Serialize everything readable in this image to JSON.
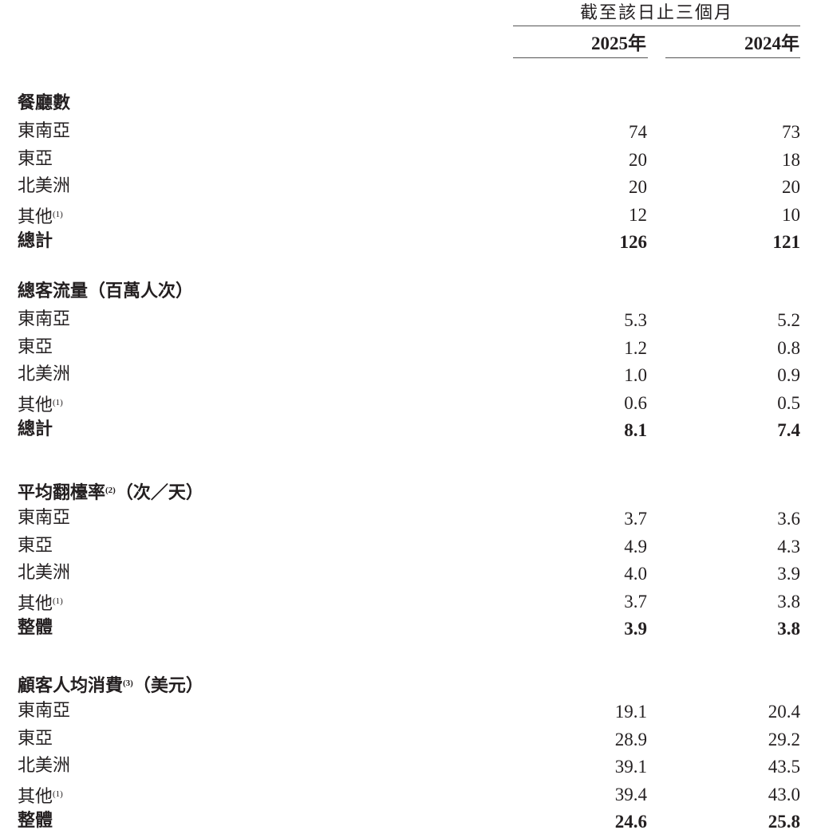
{
  "header": {
    "period": "截至該日止三個月",
    "years": [
      "2025年",
      "2024年"
    ]
  },
  "sections": [
    {
      "title": "餐廳數",
      "title_note": "",
      "title_suffix": "",
      "rows": [
        {
          "label": "東南亞",
          "note": "",
          "values": [
            "74",
            "73"
          ]
        },
        {
          "label": "東亞",
          "note": "",
          "values": [
            "20",
            "18"
          ]
        },
        {
          "label": "北美洲",
          "note": "",
          "values": [
            "20",
            "20"
          ]
        },
        {
          "label": "其他",
          "note": "(1)",
          "values": [
            "12",
            "10"
          ]
        },
        {
          "label": "總計",
          "note": "",
          "values": [
            "126",
            "121"
          ],
          "bold": true
        }
      ]
    },
    {
      "title": "總客流量",
      "title_note": "",
      "title_suffix": "（百萬人次）",
      "rows": [
        {
          "label": "東南亞",
          "note": "",
          "values": [
            "5.3",
            "5.2"
          ]
        },
        {
          "label": "東亞",
          "note": "",
          "values": [
            "1.2",
            "0.8"
          ]
        },
        {
          "label": "北美洲",
          "note": "",
          "values": [
            "1.0",
            "0.9"
          ]
        },
        {
          "label": "其他",
          "note": "(1)",
          "values": [
            "0.6",
            "0.5"
          ]
        },
        {
          "label": "總計",
          "note": "",
          "values": [
            "8.1",
            "7.4"
          ],
          "bold": true
        }
      ]
    },
    {
      "title": "平均翻檯率",
      "title_note": "(2)",
      "title_suffix": "（次／天）",
      "rows": [
        {
          "label": "東南亞",
          "note": "",
          "values": [
            "3.7",
            "3.6"
          ]
        },
        {
          "label": "東亞",
          "note": "",
          "values": [
            "4.9",
            "4.3"
          ]
        },
        {
          "label": "北美洲",
          "note": "",
          "values": [
            "4.0",
            "3.9"
          ]
        },
        {
          "label": "其他",
          "note": "(1)",
          "values": [
            "3.7",
            "3.8"
          ]
        },
        {
          "label": "整體",
          "note": "",
          "values": [
            "3.9",
            "3.8"
          ],
          "bold": true
        }
      ]
    },
    {
      "title": "顧客人均消費",
      "title_note": "(3)",
      "title_suffix": "（美元）",
      "rows": [
        {
          "label": "東南亞",
          "note": "",
          "values": [
            "19.1",
            "20.4"
          ]
        },
        {
          "label": "東亞",
          "note": "",
          "values": [
            "28.9",
            "29.2"
          ]
        },
        {
          "label": "北美洲",
          "note": "",
          "values": [
            "39.1",
            "43.5"
          ]
        },
        {
          "label": "其他",
          "note": "(1)",
          "values": [
            "39.4",
            "43.0"
          ]
        },
        {
          "label": "整體",
          "note": "",
          "values": [
            "24.6",
            "25.8"
          ],
          "bold": true
        }
      ]
    }
  ]
}
